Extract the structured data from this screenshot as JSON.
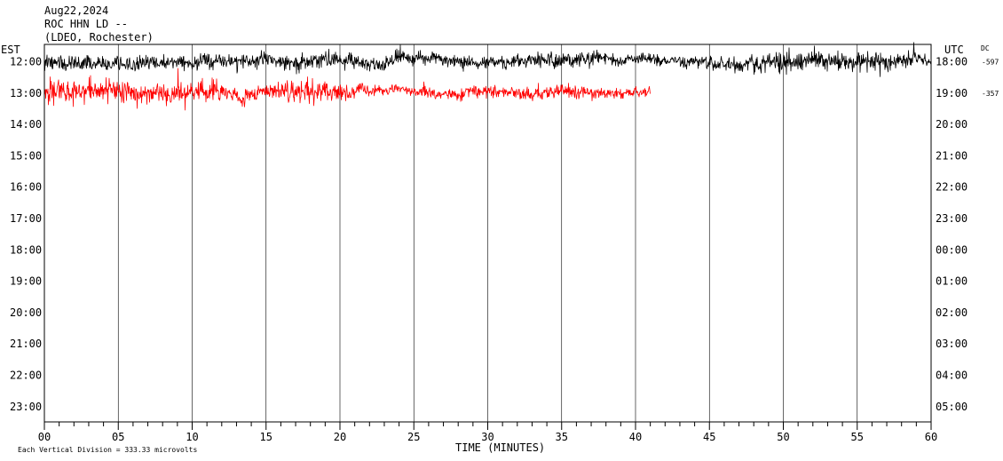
{
  "header": {
    "date": "Aug22,2024",
    "station": "ROC HHN LD --",
    "network": "(LDEO, Rochester)"
  },
  "left_axis_label": "EST",
  "right_axis_label": "UTC",
  "dc_label": "DC",
  "x_axis_label": "TIME (MINUTES)",
  "footer": {
    "scale_note": "Each Vertical Division = 333.33 microvolts"
  },
  "colors": {
    "background": "#ffffff",
    "grid": "#000000",
    "trace_a": "#000000",
    "trace_b": "#ff0000"
  },
  "chart_data": {
    "type": "line",
    "title": "",
    "xlabel": "TIME (MINUTES)",
    "ylabel": "",
    "xlim": [
      0,
      60
    ],
    "x_ticks": [
      "00",
      "05",
      "10",
      "15",
      "20",
      "25",
      "30",
      "35",
      "40",
      "45",
      "50",
      "55",
      "60"
    ],
    "x_tick_values": [
      0,
      5,
      10,
      15,
      20,
      25,
      30,
      35,
      40,
      45,
      50,
      55,
      60
    ],
    "left_ticks": [
      "12:00",
      "13:00",
      "14:00",
      "15:00",
      "16:00",
      "17:00",
      "18:00",
      "19:00",
      "20:00",
      "21:00",
      "22:00",
      "23:00"
    ],
    "right_ticks": [
      "18:00",
      "19:00",
      "20:00",
      "21:00",
      "22:00",
      "23:00",
      "00:00",
      "01:00",
      "02:00",
      "03:00",
      "04:00",
      "05:00"
    ],
    "dc_offsets": [
      "-597",
      "-357"
    ],
    "grid": "vertical every 5 minutes",
    "series": [
      {
        "row": 0,
        "start_minute": 0,
        "end_minute": 60,
        "color": "#000000",
        "amplitude_profile": [
          [
            0,
            1.0
          ],
          [
            10,
            0.9
          ],
          [
            20,
            1.1
          ],
          [
            28,
            0.7
          ],
          [
            35,
            1.0
          ],
          [
            42,
            0.6
          ],
          [
            50,
            1.3
          ],
          [
            56,
            1.2
          ],
          [
            60,
            0.8
          ]
        ]
      },
      {
        "row": 1,
        "start_minute": 0,
        "end_minute": 41,
        "color": "#ff0000",
        "amplitude_profile": [
          [
            0,
            1.6
          ],
          [
            10,
            1.3
          ],
          [
            16,
            1.1
          ],
          [
            18,
            1.7
          ],
          [
            22,
            0.6
          ],
          [
            30,
            0.8
          ],
          [
            35,
            0.9
          ],
          [
            41,
            0.6
          ]
        ]
      }
    ]
  }
}
